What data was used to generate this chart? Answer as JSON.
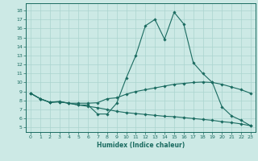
{
  "xlabel": "Humidex (Indice chaleur)",
  "bg_color": "#cce9e5",
  "grid_color": "#aad4cf",
  "line_color": "#1a6b60",
  "xlim": [
    -0.5,
    23.5
  ],
  "ylim": [
    4.5,
    18.8
  ],
  "xticks": [
    0,
    1,
    2,
    3,
    4,
    5,
    6,
    7,
    8,
    9,
    10,
    11,
    12,
    13,
    14,
    15,
    16,
    17,
    18,
    19,
    20,
    21,
    22,
    23
  ],
  "yticks": [
    5,
    6,
    7,
    8,
    9,
    10,
    11,
    12,
    13,
    14,
    15,
    16,
    17,
    18
  ],
  "line1_x": [
    0,
    1,
    2,
    3,
    4,
    5,
    6,
    7,
    8,
    9,
    10,
    11,
    12,
    13,
    14,
    15,
    16,
    17,
    18,
    19,
    20,
    21,
    22,
    23
  ],
  "line1_y": [
    8.8,
    8.2,
    7.8,
    7.9,
    7.7,
    7.5,
    7.5,
    6.5,
    6.5,
    7.7,
    10.5,
    13.0,
    16.3,
    17.0,
    14.8,
    17.8,
    16.5,
    12.2,
    11.0,
    10.0,
    7.3,
    6.3,
    5.8,
    5.2
  ],
  "line2_x": [
    0,
    1,
    2,
    3,
    4,
    5,
    6,
    7,
    8,
    9,
    10,
    11,
    12,
    13,
    14,
    15,
    16,
    17,
    18,
    19,
    20,
    21,
    22,
    23
  ],
  "line2_y": [
    8.8,
    8.2,
    7.8,
    7.85,
    7.7,
    7.7,
    7.7,
    7.75,
    8.2,
    8.3,
    8.7,
    9.0,
    9.2,
    9.4,
    9.6,
    9.8,
    9.9,
    10.0,
    10.05,
    10.0,
    9.8,
    9.5,
    9.2,
    8.8
  ],
  "line3_x": [
    0,
    1,
    2,
    3,
    4,
    5,
    6,
    7,
    8,
    9,
    10,
    11,
    12,
    13,
    14,
    15,
    16,
    17,
    18,
    19,
    20,
    21,
    22,
    23
  ],
  "line3_y": [
    8.8,
    8.2,
    7.8,
    7.85,
    7.7,
    7.5,
    7.35,
    7.2,
    7.0,
    6.8,
    6.65,
    6.55,
    6.45,
    6.35,
    6.25,
    6.2,
    6.1,
    6.0,
    5.9,
    5.8,
    5.65,
    5.55,
    5.4,
    5.2
  ]
}
